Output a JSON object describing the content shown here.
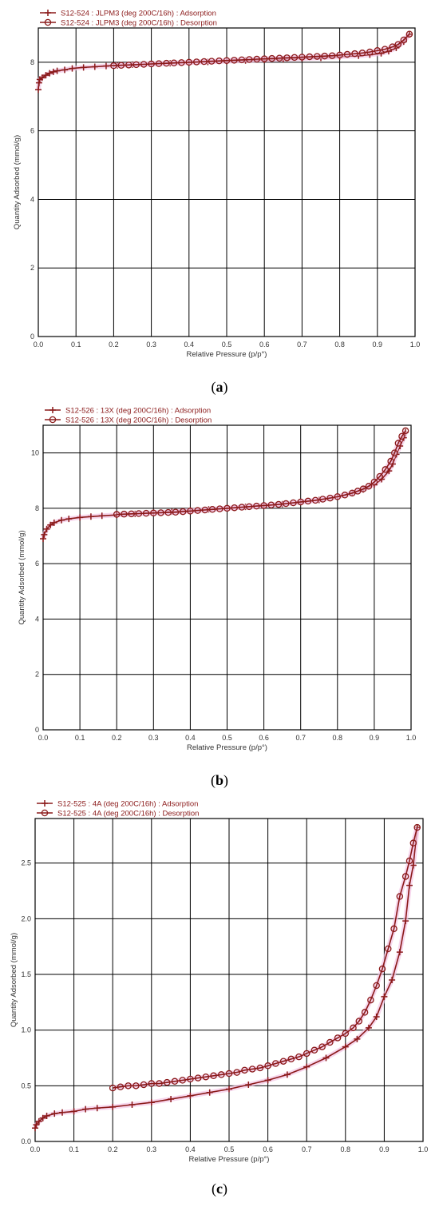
{
  "chart_data": [
    {
      "type": "line",
      "caption": "a",
      "xlabel": "Relative Pressure (p/p°)",
      "ylabel": "Quantity Adsorbed (mmol/g)",
      "xlim": [
        0,
        1
      ],
      "ylim": [
        0,
        9
      ],
      "xticks": [
        "0.0",
        "0.1",
        "0.2",
        "0.3",
        "0.4",
        "0.5",
        "0.6",
        "0.7",
        "0.8",
        "0.9",
        "1.0"
      ],
      "yticks": [
        0,
        2,
        4,
        6,
        8
      ],
      "ytick_labels": [
        "0",
        "2",
        "4",
        "6",
        "8"
      ],
      "grid": true,
      "legend_position": "top-left",
      "series_color": "#8b1a1a",
      "series": [
        {
          "name": "S12-524 : JLPM3 (deg 200C/16h) : Adsorption",
          "marker": "plus",
          "x": [
            0.0,
            0.002,
            0.004,
            0.01,
            0.02,
            0.03,
            0.04,
            0.05,
            0.07,
            0.09,
            0.12,
            0.15,
            0.18,
            0.21,
            0.25,
            0.3,
            0.35,
            0.4,
            0.45,
            0.5,
            0.55,
            0.6,
            0.65,
            0.7,
            0.75,
            0.8,
            0.85,
            0.88,
            0.91,
            0.93,
            0.95,
            0.97,
            0.985
          ],
          "y": [
            7.2,
            7.4,
            7.5,
            7.55,
            7.62,
            7.68,
            7.72,
            7.75,
            7.78,
            7.82,
            7.85,
            7.87,
            7.89,
            7.91,
            7.93,
            7.95,
            7.97,
            7.99,
            8.01,
            8.03,
            8.05,
            8.07,
            8.09,
            8.11,
            8.13,
            8.16,
            8.19,
            8.22,
            8.26,
            8.32,
            8.42,
            8.6,
            8.82
          ]
        },
        {
          "name": "S12-524 : JLPM3 (deg 200C/16h) : Desorption",
          "marker": "circle",
          "x": [
            0.985,
            0.97,
            0.955,
            0.94,
            0.92,
            0.9,
            0.88,
            0.86,
            0.84,
            0.82,
            0.8,
            0.78,
            0.76,
            0.74,
            0.72,
            0.7,
            0.68,
            0.66,
            0.64,
            0.62,
            0.6,
            0.58,
            0.56,
            0.54,
            0.52,
            0.5,
            0.48,
            0.46,
            0.44,
            0.42,
            0.4,
            0.38,
            0.36,
            0.34,
            0.32,
            0.3,
            0.28,
            0.26,
            0.24,
            0.22,
            0.2
          ],
          "y": [
            8.82,
            8.65,
            8.52,
            8.45,
            8.38,
            8.34,
            8.3,
            8.27,
            8.25,
            8.23,
            8.21,
            8.19,
            8.18,
            8.17,
            8.16,
            8.15,
            8.14,
            8.13,
            8.12,
            8.11,
            8.1,
            8.09,
            8.08,
            8.07,
            8.06,
            8.05,
            8.04,
            8.03,
            8.02,
            8.01,
            8.0,
            7.99,
            7.98,
            7.97,
            7.96,
            7.95,
            7.94,
            7.93,
            7.92,
            7.91,
            7.9
          ]
        }
      ]
    },
    {
      "type": "line",
      "caption": "b",
      "xlabel": "Relative Pressure (p/p°)",
      "ylabel": "Quantity Adsorbed (mmol/g)",
      "xlim": [
        0,
        1
      ],
      "ylim": [
        0,
        11
      ],
      "xticks": [
        "0.0",
        "0.1",
        "0.2",
        "0.3",
        "0.4",
        "0.5",
        "0.6",
        "0.7",
        "0.8",
        "0.9",
        "1.0"
      ],
      "yticks": [
        0,
        2,
        4,
        6,
        8,
        10
      ],
      "ytick_labels": [
        "0",
        "2",
        "4",
        "6",
        "8",
        "10"
      ],
      "grid": true,
      "legend_position": "top-left",
      "series_color": "#8b1a1a",
      "series": [
        {
          "name": "S12-526 : 13X (deg 200C/16h) : Adsorption",
          "marker": "plus",
          "x": [
            0.0,
            0.003,
            0.01,
            0.02,
            0.03,
            0.05,
            0.07,
            0.1,
            0.13,
            0.16,
            0.2,
            0.25,
            0.3,
            0.35,
            0.4,
            0.45,
            0.5,
            0.55,
            0.6,
            0.65,
            0.7,
            0.75,
            0.8,
            0.84,
            0.87,
            0.9,
            0.92,
            0.94,
            0.95,
            0.96,
            0.97,
            0.98,
            0.985
          ],
          "y": [
            6.9,
            7.05,
            7.25,
            7.4,
            7.48,
            7.57,
            7.62,
            7.67,
            7.7,
            7.73,
            7.76,
            7.8,
            7.84,
            7.88,
            7.92,
            7.96,
            8.0,
            8.05,
            8.1,
            8.15,
            8.22,
            8.3,
            8.42,
            8.55,
            8.68,
            8.85,
            9.05,
            9.35,
            9.6,
            9.95,
            10.25,
            10.55,
            10.75
          ]
        },
        {
          "name": "S12-526 : 13X (deg 200C/16h) : Desorption",
          "marker": "circle",
          "x": [
            0.985,
            0.975,
            0.965,
            0.955,
            0.945,
            0.93,
            0.915,
            0.9,
            0.885,
            0.87,
            0.855,
            0.84,
            0.82,
            0.8,
            0.78,
            0.76,
            0.74,
            0.72,
            0.7,
            0.68,
            0.66,
            0.64,
            0.62,
            0.6,
            0.58,
            0.56,
            0.54,
            0.52,
            0.5,
            0.48,
            0.46,
            0.44,
            0.42,
            0.4,
            0.38,
            0.36,
            0.34,
            0.32,
            0.3,
            0.28,
            0.26,
            0.24,
            0.22,
            0.2
          ],
          "y": [
            10.8,
            10.6,
            10.35,
            10.0,
            9.7,
            9.4,
            9.15,
            8.95,
            8.8,
            8.7,
            8.62,
            8.55,
            8.48,
            8.42,
            8.37,
            8.33,
            8.29,
            8.26,
            8.23,
            8.2,
            8.17,
            8.14,
            8.12,
            8.1,
            8.08,
            8.06,
            8.04,
            8.02,
            8.0,
            7.98,
            7.96,
            7.94,
            7.92,
            7.9,
            7.88,
            7.86,
            7.85,
            7.84,
            7.83,
            7.82,
            7.81,
            7.8,
            7.79,
            7.78
          ]
        }
      ]
    },
    {
      "type": "line",
      "caption": "c",
      "xlabel": "Relative Pressure (p/p°)",
      "ylabel": "Quantity Adsorbed (mmol/g)",
      "xlim": [
        0,
        1
      ],
      "ylim": [
        0,
        2.9
      ],
      "xticks": [
        "0.0",
        "0.1",
        "0.2",
        "0.3",
        "0.4",
        "0.5",
        "0.6",
        "0.7",
        "0.8",
        "0.9",
        "1.0"
      ],
      "yticks": [
        0,
        0.5,
        1.0,
        1.5,
        2.0,
        2.5
      ],
      "ytick_labels": [
        "0.0",
        "0.5",
        "1.0",
        "1.5",
        "2.0",
        "2.5"
      ],
      "grid": true,
      "legend_position": "top-left",
      "series_color": "#8b1a1a",
      "series": [
        {
          "name": "S12-525 : 4A (deg 200C/16h) : Adsorption",
          "marker": "plus",
          "x": [
            0.0,
            0.003,
            0.01,
            0.02,
            0.03,
            0.05,
            0.07,
            0.1,
            0.13,
            0.16,
            0.2,
            0.25,
            0.3,
            0.35,
            0.4,
            0.45,
            0.5,
            0.55,
            0.6,
            0.65,
            0.7,
            0.75,
            0.8,
            0.83,
            0.86,
            0.88,
            0.9,
            0.92,
            0.94,
            0.955,
            0.965,
            0.975,
            0.985
          ],
          "y": [
            0.12,
            0.15,
            0.18,
            0.21,
            0.23,
            0.25,
            0.26,
            0.27,
            0.29,
            0.3,
            0.31,
            0.33,
            0.35,
            0.38,
            0.41,
            0.44,
            0.47,
            0.51,
            0.55,
            0.6,
            0.67,
            0.75,
            0.85,
            0.92,
            1.02,
            1.12,
            1.3,
            1.45,
            1.7,
            1.98,
            2.3,
            2.48,
            2.82
          ]
        },
        {
          "name": "S12-525 : 4A (deg 200C/16h) : Desorption",
          "marker": "circle",
          "x": [
            0.985,
            0.975,
            0.965,
            0.955,
            0.94,
            0.925,
            0.91,
            0.895,
            0.88,
            0.865,
            0.85,
            0.835,
            0.82,
            0.8,
            0.78,
            0.76,
            0.74,
            0.72,
            0.7,
            0.68,
            0.66,
            0.64,
            0.62,
            0.6,
            0.58,
            0.56,
            0.54,
            0.52,
            0.5,
            0.48,
            0.46,
            0.44,
            0.42,
            0.4,
            0.38,
            0.36,
            0.34,
            0.32,
            0.3,
            0.28,
            0.26,
            0.24,
            0.22,
            0.2
          ],
          "y": [
            2.82,
            2.68,
            2.52,
            2.38,
            2.2,
            1.91,
            1.73,
            1.55,
            1.4,
            1.27,
            1.16,
            1.08,
            1.02,
            0.97,
            0.93,
            0.89,
            0.85,
            0.82,
            0.79,
            0.76,
            0.74,
            0.72,
            0.7,
            0.68,
            0.66,
            0.65,
            0.64,
            0.62,
            0.61,
            0.6,
            0.59,
            0.58,
            0.57,
            0.56,
            0.55,
            0.54,
            0.53,
            0.52,
            0.52,
            0.51,
            0.5,
            0.5,
            0.49,
            0.48
          ]
        }
      ]
    }
  ]
}
